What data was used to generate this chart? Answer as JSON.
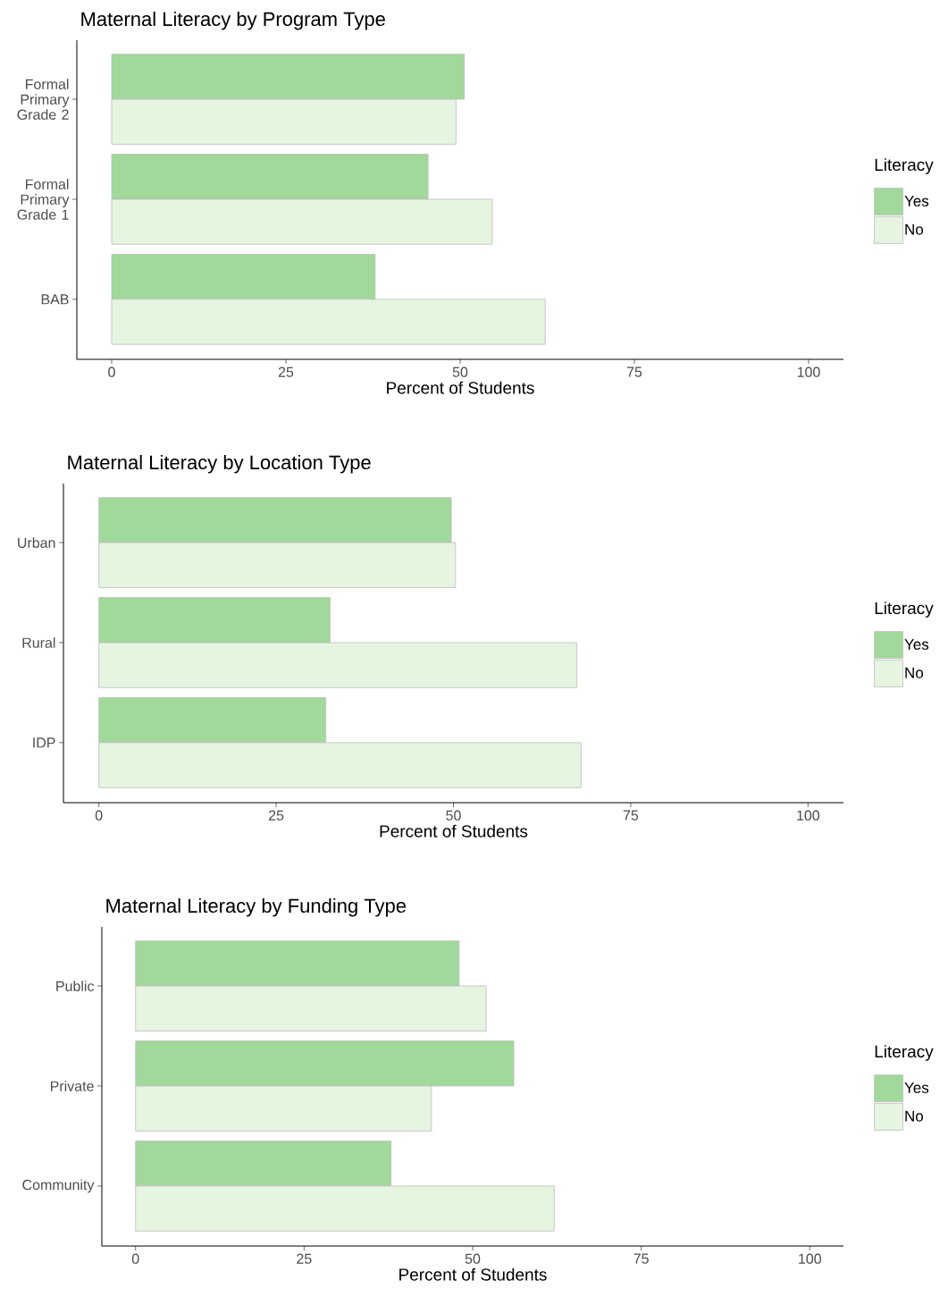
{
  "chart_data": [
    {
      "type": "bar",
      "orientation": "horizontal",
      "title": "Maternal Literacy by Program Type",
      "xlabel": "Percent of Students",
      "legend_title": "Literacy",
      "legend": "right",
      "categories": [
        "Formal Primary Grade 2",
        "Formal Primary Grade 1",
        "BAB"
      ],
      "series": [
        {
          "name": "Yes",
          "color": "#a1d99b",
          "values": [
            50.6,
            45.4,
            37.8
          ]
        },
        {
          "name": "No",
          "color": "#e5f5e0",
          "values": [
            49.4,
            54.6,
            62.2
          ]
        }
      ],
      "xlim": [
        -5,
        105
      ],
      "xticks": [
        0,
        25,
        50,
        75,
        100
      ]
    },
    {
      "type": "bar",
      "orientation": "horizontal",
      "title": "Maternal Literacy by Location Type",
      "xlabel": "Percent of Students",
      "legend_title": "Literacy",
      "legend": "right",
      "categories": [
        "Urban",
        "Rural",
        "IDP"
      ],
      "series": [
        {
          "name": "Yes",
          "color": "#a1d99b",
          "values": [
            49.7,
            32.6,
            32.0
          ]
        },
        {
          "name": "No",
          "color": "#e5f5e0",
          "values": [
            50.3,
            67.4,
            68.0
          ]
        }
      ],
      "xlim": [
        -5,
        105
      ],
      "xticks": [
        0,
        25,
        50,
        75,
        100
      ]
    },
    {
      "type": "bar",
      "orientation": "horizontal",
      "title": "Maternal Literacy by Funding Type",
      "xlabel": "Percent of Students",
      "legend_title": "Literacy",
      "legend": "right",
      "categories": [
        "Public",
        "Private",
        "Community"
      ],
      "series": [
        {
          "name": "Yes",
          "color": "#a1d99b",
          "values": [
            48.0,
            56.1,
            37.9
          ]
        },
        {
          "name": "No",
          "color": "#e5f5e0",
          "values": [
            52.0,
            43.9,
            62.1
          ]
        }
      ],
      "xlim": [
        -5,
        105
      ],
      "xticks": [
        0,
        25,
        50,
        75,
        100
      ]
    }
  ]
}
